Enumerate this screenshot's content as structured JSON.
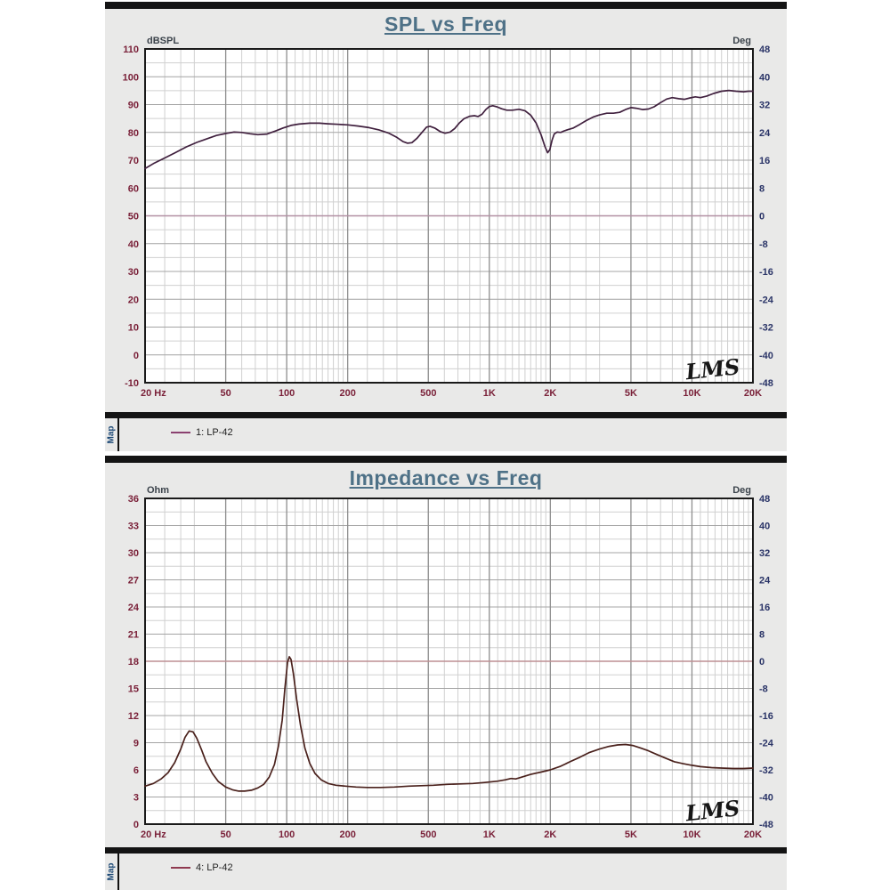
{
  "style": {
    "page_bg": "#ffffff",
    "panel_bg": "#e9e9e8",
    "frame_bar_color": "#141414",
    "title_color": "#4e7187",
    "map_color": "#1d4976",
    "tick_left_color": "#7a2139",
    "tick_right_color": "#2a3467",
    "unit_label_color": "#3b434b",
    "legend_text_color": "#222222"
  },
  "legends": [
    {
      "map_label": "Map",
      "series_label": "1: LP-42",
      "swatch_color": "#8b4170"
    },
    {
      "map_label": "Map",
      "series_label": "4: LP-42",
      "swatch_color": "#8f3a50"
    }
  ],
  "chart_data": [
    {
      "type": "line",
      "title": "SPL vs Freq",
      "logo": "LMS",
      "x": {
        "scale": "log",
        "min": 20,
        "max": 20000,
        "ticks": [
          20,
          50,
          100,
          200,
          500,
          1000,
          2000,
          5000,
          10000,
          20000
        ],
        "labels": [
          "20 Hz",
          "50",
          "100",
          "200",
          "500",
          "1K",
          "2K",
          "5K",
          "10K",
          "20K"
        ],
        "minor_decades": [
          20,
          200,
          2000
        ],
        "minor_multipliers": [
          1.25,
          1.5,
          1.75,
          2.5,
          3,
          3.5,
          4,
          4.5,
          5.5,
          6,
          6.5,
          7,
          7.5,
          8,
          8.5,
          9,
          9.5
        ]
      },
      "y_left": {
        "label": "dBSPL",
        "min": -10,
        "max": 110,
        "major_step": 10,
        "minor_step": 5,
        "ticks": [
          110,
          100,
          90,
          80,
          70,
          60,
          50,
          40,
          30,
          20,
          10,
          0,
          -10
        ]
      },
      "y_right": {
        "label": "Deg",
        "min": -48,
        "max": 48,
        "step": 8,
        "ticks": [
          48,
          40,
          32,
          24,
          16,
          8,
          0,
          -8,
          -16,
          -24,
          -32,
          -40,
          -48
        ]
      },
      "zero_deg_line": {
        "value": 50,
        "color": "#b18fa3"
      },
      "grid": {
        "major_h": "#a4a4a4",
        "major_v": "#8e8e8e",
        "minor": "#d0d0d0",
        "border": "#1a1a1a",
        "plot_bg": "#ffffff"
      },
      "series": [
        {
          "name": "1: LP-42",
          "color": "#40203e",
          "points": [
            [
              20,
              67
            ],
            [
              22,
              68.8
            ],
            [
              25,
              70.8
            ],
            [
              28,
              72.6
            ],
            [
              32,
              74.8
            ],
            [
              36,
              76.4
            ],
            [
              40,
              77.6
            ],
            [
              45,
              78.9
            ],
            [
              50,
              79.6
            ],
            [
              55,
              80.1
            ],
            [
              60,
              80
            ],
            [
              66,
              79.5
            ],
            [
              72,
              79.2
            ],
            [
              80,
              79.4
            ],
            [
              88,
              80.5
            ],
            [
              96,
              81.6
            ],
            [
              105,
              82.5
            ],
            [
              115,
              83
            ],
            [
              130,
              83.3
            ],
            [
              145,
              83.3
            ],
            [
              160,
              83.1
            ],
            [
              180,
              82.9
            ],
            [
              200,
              82.7
            ],
            [
              225,
              82.3
            ],
            [
              255,
              81.7
            ],
            [
              285,
              80.9
            ],
            [
              320,
              79.7
            ],
            [
              350,
              78.2
            ],
            [
              375,
              76.7
            ],
            [
              395,
              76.1
            ],
            [
              415,
              76.3
            ],
            [
              440,
              77.9
            ],
            [
              465,
              80
            ],
            [
              490,
              81.9
            ],
            [
              510,
              82.2
            ],
            [
              540,
              81.5
            ],
            [
              575,
              80.2
            ],
            [
              605,
              79.7
            ],
            [
              640,
              80.1
            ],
            [
              675,
              81.4
            ],
            [
              710,
              83.3
            ],
            [
              750,
              84.9
            ],
            [
              800,
              85.8
            ],
            [
              845,
              86
            ],
            [
              880,
              85.7
            ],
            [
              920,
              86.5
            ],
            [
              960,
              88.2
            ],
            [
              1000,
              89.3
            ],
            [
              1040,
              89.6
            ],
            [
              1090,
              89.2
            ],
            [
              1150,
              88.5
            ],
            [
              1220,
              88
            ],
            [
              1300,
              88
            ],
            [
              1400,
              88.3
            ],
            [
              1500,
              87.8
            ],
            [
              1600,
              86.2
            ],
            [
              1700,
              83.4
            ],
            [
              1800,
              79.2
            ],
            [
              1880,
              75
            ],
            [
              1940,
              72.7
            ],
            [
              1990,
              73.8
            ],
            [
              2040,
              77.2
            ],
            [
              2090,
              79.4
            ],
            [
              2160,
              80.1
            ],
            [
              2250,
              80
            ],
            [
              2350,
              80.6
            ],
            [
              2450,
              81
            ],
            [
              2600,
              81.6
            ],
            [
              2800,
              82.9
            ],
            [
              3000,
              84.2
            ],
            [
              3250,
              85.5
            ],
            [
              3500,
              86.3
            ],
            [
              3800,
              86.9
            ],
            [
              4100,
              86.9
            ],
            [
              4400,
              87.2
            ],
            [
              4700,
              88.2
            ],
            [
              5000,
              88.9
            ],
            [
              5300,
              88.7
            ],
            [
              5700,
              88.2
            ],
            [
              6100,
              88.4
            ],
            [
              6500,
              89.2
            ],
            [
              7000,
              90.7
            ],
            [
              7500,
              92
            ],
            [
              8000,
              92.5
            ],
            [
              8600,
              92.1
            ],
            [
              9200,
              91.9
            ],
            [
              9800,
              92.4
            ],
            [
              10400,
              92.8
            ],
            [
              11000,
              92.5
            ],
            [
              11800,
              93
            ],
            [
              12800,
              94
            ],
            [
              14000,
              94.8
            ],
            [
              15200,
              95.1
            ],
            [
              16500,
              94.8
            ],
            [
              18000,
              94.6
            ],
            [
              19000,
              94.8
            ],
            [
              20000,
              94.8
            ]
          ]
        }
      ]
    },
    {
      "type": "line",
      "title": "Impedance vs Freq",
      "logo": "LMS",
      "x": {
        "scale": "log",
        "min": 20,
        "max": 20000,
        "ticks": [
          20,
          50,
          100,
          200,
          500,
          1000,
          2000,
          5000,
          10000,
          20000
        ],
        "labels": [
          "20 Hz",
          "50",
          "100",
          "200",
          "500",
          "1K",
          "2K",
          "5K",
          "10K",
          "20K"
        ],
        "minor_decades": [
          20,
          200,
          2000
        ],
        "minor_multipliers": [
          1.25,
          1.5,
          1.75,
          2.5,
          3,
          3.5,
          4,
          4.5,
          5.5,
          6,
          6.5,
          7,
          7.5,
          8,
          8.5,
          9,
          9.5
        ]
      },
      "y_left": {
        "label": "Ohm",
        "min": 0,
        "max": 36,
        "major_step": 3,
        "minor_step": 1.5,
        "ticks": [
          36,
          33,
          30,
          27,
          24,
          21,
          18,
          15,
          12,
          9,
          6,
          3,
          0
        ]
      },
      "y_right": {
        "label": "Deg",
        "min": -48,
        "max": 48,
        "step": 8,
        "ticks": [
          48,
          40,
          32,
          24,
          16,
          8,
          0,
          -8,
          -16,
          -24,
          -32,
          -40,
          -48
        ]
      },
      "zero_deg_line": {
        "value": 18,
        "color": "#bd8f93"
      },
      "grid": {
        "major_h": "#a4a4a4",
        "major_v": "#8e8e8e",
        "minor": "#d0d0d0",
        "border": "#1a1a1a",
        "plot_bg": "#ffffff"
      },
      "series": [
        {
          "name": "4: LP-42",
          "color": "#4a211c",
          "points": [
            [
              20,
              4.2
            ],
            [
              22,
              4.5
            ],
            [
              24,
              5
            ],
            [
              26,
              5.7
            ],
            [
              28,
              6.8
            ],
            [
              30,
              8.3
            ],
            [
              31.5,
              9.6
            ],
            [
              33,
              10.3
            ],
            [
              34.5,
              10.2
            ],
            [
              36,
              9.5
            ],
            [
              38,
              8.2
            ],
            [
              40,
              6.9
            ],
            [
              43,
              5.6
            ],
            [
              46,
              4.7
            ],
            [
              50,
              4.1
            ],
            [
              54,
              3.8
            ],
            [
              58,
              3.65
            ],
            [
              62,
              3.65
            ],
            [
              67,
              3.75
            ],
            [
              72,
              4
            ],
            [
              77,
              4.4
            ],
            [
              82,
              5.2
            ],
            [
              87,
              6.6
            ],
            [
              91,
              8.6
            ],
            [
              95,
              11.5
            ],
            [
              98,
              15
            ],
            [
              101,
              17.9
            ],
            [
              103,
              18.5
            ],
            [
              105,
              18.2
            ],
            [
              108,
              16.6
            ],
            [
              112,
              13.8
            ],
            [
              117,
              10.9
            ],
            [
              123,
              8.4
            ],
            [
              130,
              6.7
            ],
            [
              138,
              5.6
            ],
            [
              148,
              4.9
            ],
            [
              160,
              4.5
            ],
            [
              175,
              4.3
            ],
            [
              195,
              4.2
            ],
            [
              220,
              4.1
            ],
            [
              250,
              4.05
            ],
            [
              290,
              4.05
            ],
            [
              340,
              4.1
            ],
            [
              400,
              4.2
            ],
            [
              460,
              4.25
            ],
            [
              530,
              4.3
            ],
            [
              620,
              4.4
            ],
            [
              720,
              4.45
            ],
            [
              830,
              4.5
            ],
            [
              950,
              4.6
            ],
            [
              1100,
              4.75
            ],
            [
              1200,
              4.9
            ],
            [
              1280,
              5.05
            ],
            [
              1350,
              5
            ],
            [
              1450,
              5.2
            ],
            [
              1600,
              5.5
            ],
            [
              1800,
              5.75
            ],
            [
              2000,
              6
            ],
            [
              2250,
              6.4
            ],
            [
              2500,
              6.9
            ],
            [
              2800,
              7.4
            ],
            [
              3100,
              7.9
            ],
            [
              3500,
              8.3
            ],
            [
              3900,
              8.6
            ],
            [
              4300,
              8.75
            ],
            [
              4700,
              8.8
            ],
            [
              5100,
              8.7
            ],
            [
              5600,
              8.4
            ],
            [
              6100,
              8.1
            ],
            [
              6700,
              7.7
            ],
            [
              7400,
              7.3
            ],
            [
              8200,
              6.9
            ],
            [
              9000,
              6.7
            ],
            [
              10000,
              6.5
            ],
            [
              11000,
              6.35
            ],
            [
              12500,
              6.25
            ],
            [
              14000,
              6.2
            ],
            [
              16000,
              6.15
            ],
            [
              18000,
              6.15
            ],
            [
              20000,
              6.2
            ]
          ]
        }
      ]
    }
  ]
}
